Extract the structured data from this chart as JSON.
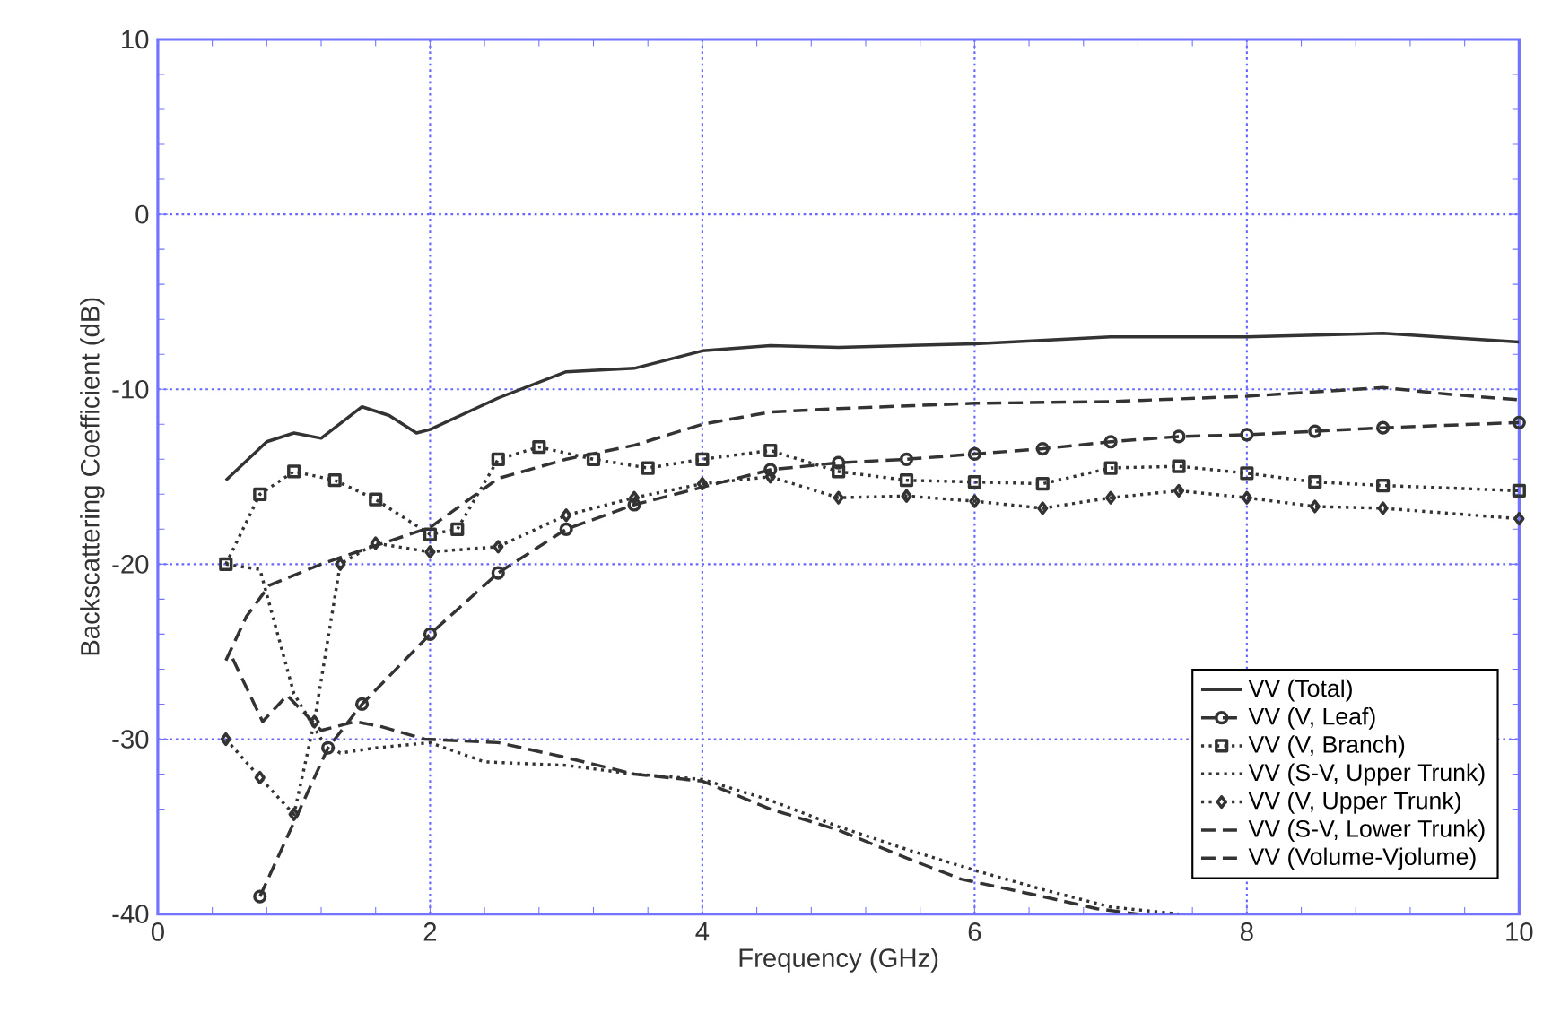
{
  "chart_data": {
    "type": "line",
    "xlabel": "Frequency (GHz)",
    "ylabel": "Backscattering Coefficient (dB)",
    "xlim": [
      0,
      10
    ],
    "ylim": [
      -40,
      10
    ],
    "xticks": [
      0,
      2,
      4,
      6,
      8,
      10
    ],
    "yticks": [
      -40,
      -30,
      -20,
      -10,
      0,
      10
    ],
    "grid": true,
    "legend": "bottom right",
    "series": [
      {
        "name": "VV (Total)",
        "color": "#333333",
        "line_style": "solid",
        "marker": "none",
        "x": [
          0.5,
          0.8,
          1.0,
          1.2,
          1.5,
          1.7,
          1.9,
          2.0,
          2.5,
          3.0,
          3.5,
          4.0,
          4.5,
          5.0,
          6.0,
          7.0,
          8.0,
          9.0,
          10.0
        ],
        "values": [
          -15.2,
          -13,
          -12.5,
          -12.8,
          -11,
          -11.5,
          -12.5,
          -12.3,
          -10.5,
          -9,
          -8.8,
          -7.8,
          -7.5,
          -7.6,
          -7.4,
          -7,
          -7,
          -6.8,
          -7.3
        ]
      },
      {
        "name": "VV (V, Leaf)",
        "color": "#333333",
        "line_style": "dashed",
        "marker": "circle",
        "x": [
          0.75,
          1.25,
          1.5,
          2.0,
          2.5,
          3.0,
          3.5,
          4.5,
          5.0,
          5.5,
          6.0,
          6.5,
          7.0,
          7.5,
          8.0,
          8.5,
          9.0,
          10.0
        ],
        "values": [
          -39,
          -30.5,
          -28,
          -24,
          -20.5,
          -18,
          -16.6,
          -14.6,
          -14.2,
          -14,
          -13.7,
          -13.4,
          -13,
          -12.7,
          -12.6,
          -12.4,
          -12.2,
          -11.9
        ]
      },
      {
        "name": "VV (V, Branch)",
        "color": "#333333",
        "line_style": "dotted",
        "marker": "square",
        "x": [
          0.5,
          0.75,
          1.0,
          1.3,
          1.6,
          2.0,
          2.2,
          2.5,
          2.8,
          3.2,
          3.6,
          4.0,
          4.5,
          5.0,
          5.5,
          6.0,
          6.5,
          7.0,
          7.5,
          8.0,
          8.5,
          9.0,
          10.0
        ],
        "values": [
          -20,
          -16,
          -14.7,
          -15.2,
          -16.3,
          -18.3,
          -18,
          -14,
          -13.3,
          -14,
          -14.5,
          -14,
          -13.5,
          -14.7,
          -15.2,
          -15.3,
          -15.4,
          -14.5,
          -14.4,
          -14.8,
          -15.3,
          -15.5,
          -15.8
        ]
      },
      {
        "name": "VV (S-V, Upper Trunk)",
        "color": "#333333",
        "line_style": "dotted",
        "marker": "none",
        "x": [
          0.5,
          0.75,
          1.0,
          1.2,
          1.34,
          1.6,
          2.0,
          2.4,
          3.0,
          3.5,
          4.0,
          4.5,
          5.0,
          5.5,
          6.0,
          6.5,
          7.0,
          7.5
        ],
        "values": [
          -20,
          -20.3,
          -27.4,
          -30,
          -30.8,
          -30.5,
          -30.2,
          -31.3,
          -31.5,
          -32,
          -32.3,
          -33.5,
          -35,
          -36.3,
          -37.5,
          -38.6,
          -39.6,
          -40
        ]
      },
      {
        "name": "VV (V, Upper Trunk)",
        "color": "#333333",
        "line_style": "dotted",
        "marker": "diamond",
        "x": [
          0.5,
          0.75,
          1.0,
          1.15,
          1.34,
          1.6,
          2.0,
          2.5,
          3.0,
          3.5,
          4.0,
          4.5,
          5.0,
          5.5,
          6.0,
          6.5,
          7.0,
          7.5,
          8.0,
          8.5,
          9.0,
          10.0
        ],
        "values": [
          -30,
          -32.2,
          -34.3,
          -29,
          -20,
          -18.8,
          -19.3,
          -19,
          -17.2,
          -16.2,
          -15.4,
          -15,
          -16.2,
          -16.1,
          -16.4,
          -16.8,
          -16.2,
          -15.8,
          -16.2,
          -16.7,
          -16.8,
          -17.4
        ]
      },
      {
        "name": "VV (S-V, Lower Trunk)",
        "color": "#333333",
        "line_style": "dashed",
        "marker": "none",
        "x": [
          0.55,
          0.77,
          0.95,
          1.2,
          1.45,
          1.65,
          1.96,
          2.5,
          2.97,
          3.5,
          4.0,
          4.5,
          5.0,
          5.5,
          5.9,
          6.5,
          6.9,
          7.2
        ],
        "values": [
          -25.4,
          -29,
          -27.5,
          -29.5,
          -29,
          -29.3,
          -30,
          -30.2,
          -31,
          -32,
          -32.4,
          -34,
          -35.2,
          -36.8,
          -38,
          -39,
          -39.7,
          -40
        ]
      },
      {
        "name": "VV (Volume-Vjolume)",
        "color": "#333333",
        "line_style": "dashed",
        "marker": "none",
        "x": [
          0.5,
          0.65,
          0.82,
          1.2,
          1.5,
          2.0,
          2.5,
          3.0,
          3.5,
          4.0,
          4.5,
          5.0,
          6.0,
          7.0,
          8.0,
          9.0,
          9.5,
          10.0
        ],
        "values": [
          -25.5,
          -23,
          -21.2,
          -20,
          -19.2,
          -17.9,
          -15.1,
          -14,
          -13.2,
          -12,
          -11.3,
          -11.1,
          -10.8,
          -10.7,
          -10.4,
          -9.9,
          -10.3,
          -10.6
        ]
      }
    ]
  }
}
